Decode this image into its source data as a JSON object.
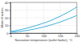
{
  "chart_data": {
    "type": "line",
    "x_label": "Saturation temperature (outlet boiler), °C",
    "y_label": "Water fraction",
    "x": [
      0,
      25,
      50,
      75,
      100,
      125,
      150,
      175,
      200
    ],
    "series": [
      {
        "color": "#29a8d8",
        "values": [
          2,
          4,
          6.5,
          9.5,
          13,
          17,
          22,
          27.5,
          34
        ]
      },
      {
        "color": "#29a8d8",
        "values": [
          1,
          2,
          3.5,
          5.5,
          8,
          11,
          14.5,
          18.5,
          23
        ]
      }
    ],
    "xlim": [
      0,
      200
    ],
    "xticks": [
      0,
      50,
      100,
      150,
      200
    ],
    "ylim": [
      0,
      40
    ],
    "yticks": [
      0,
      10,
      20,
      30,
      40
    ],
    "grid": true
  }
}
